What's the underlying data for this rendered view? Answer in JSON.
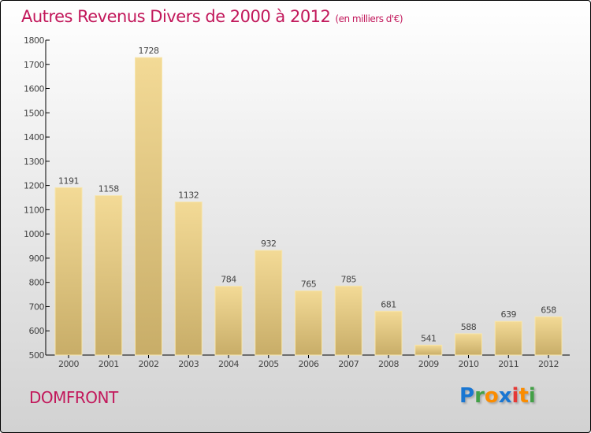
{
  "chart_data": {
    "type": "bar",
    "title": "Autres Revenus Divers de 2000 à 2012",
    "subtitle": "(en milliers d'€)",
    "categories": [
      "2000",
      "2001",
      "2002",
      "2003",
      "2004",
      "2005",
      "2006",
      "2007",
      "2008",
      "2009",
      "2010",
      "2011",
      "2012"
    ],
    "values": [
      1191,
      1158,
      1728,
      1132,
      784,
      932,
      765,
      785,
      681,
      541,
      588,
      639,
      658
    ],
    "ylim": [
      500,
      1800
    ],
    "yticks": [
      500,
      600,
      700,
      800,
      900,
      1000,
      1100,
      1200,
      1300,
      1400,
      1500,
      1600,
      1700,
      1800
    ],
    "xlabel": "",
    "ylabel": "",
    "bar_color": "#e8cf88"
  },
  "location": "DOMFRONT",
  "logo": {
    "text": "Proxiti",
    "letters": [
      "P",
      "r",
      "o",
      "x",
      "i",
      "t",
      "i"
    ],
    "colors": [
      "#1976d2",
      "#43a047",
      "#fb8c00",
      "#1976d2",
      "#e53935",
      "#fb8c00",
      "#43a047"
    ]
  }
}
